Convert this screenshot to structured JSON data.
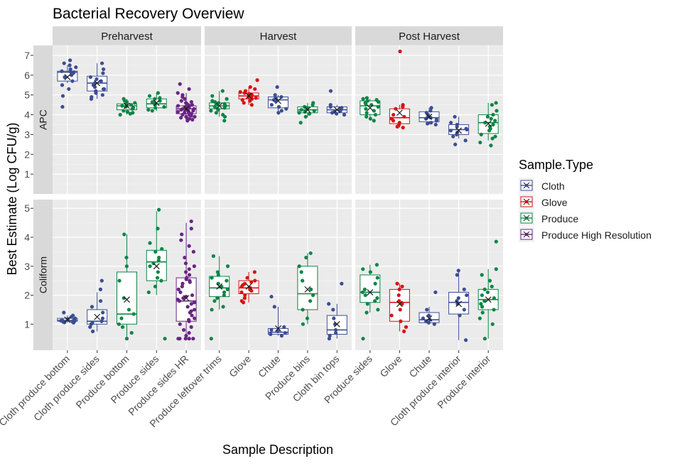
{
  "chart_data": {
    "type": "box",
    "title": "Bacterial Recovery Overview",
    "xlabel": "Sample Description",
    "ylabel": "Best Estimate (Log CFU/g)",
    "legend": {
      "title": "Sample.Type",
      "position": "right",
      "entries": [
        {
          "name": "Cloth",
          "color": "#3C4E93"
        },
        {
          "name": "Glove",
          "color": "#D61313"
        },
        {
          "name": "Produce",
          "color": "#0E8546"
        },
        {
          "name": "Produce High Resolution",
          "color": "#6A2483"
        }
      ]
    },
    "facet_cols": [
      "Preharvest",
      "Harvest",
      "Post Harvest"
    ],
    "facet_rows": [
      {
        "label": "APC",
        "ylim": [
          0,
          7.5
        ],
        "yticks": [
          1,
          2,
          3,
          4,
          5,
          6,
          7
        ]
      },
      {
        "label": "Coliform",
        "ylim": [
          0.1,
          5.3
        ],
        "yticks": [
          1,
          2,
          3,
          4,
          5
        ]
      }
    ],
    "categories": {
      "Preharvest": [
        "Cloth produce bottom",
        "Cloth produce sides",
        "Produce bottom",
        "Produce sides",
        "Produce sides HR"
      ],
      "Harvest": [
        "Produce leftover trims",
        "Glove",
        "Chute",
        "Produce bins",
        "Cloth bin tops"
      ],
      "Post Harvest": [
        "Produce sides",
        "Glove",
        "Chute",
        "Cloth produce interior",
        "Produce interior"
      ]
    },
    "grid": true,
    "boxes": [
      {
        "facet_col": "Preharvest",
        "facet_row": "APC",
        "category": "Cloth produce bottom",
        "type": "Cloth",
        "stats": {
          "min": 5.6,
          "q1": 5.7,
          "median": 6.15,
          "q3": 6.2,
          "max": 6.5,
          "mean": 5.9
        },
        "points": [
          6.75,
          6.6,
          6.5,
          6.4,
          6.3,
          6.2,
          6.2,
          6.15,
          6.15,
          6.1,
          6.0,
          5.9,
          5.7,
          5.5,
          5.3,
          4.95,
          4.4
        ]
      },
      {
        "facet_col": "Preharvest",
        "facet_row": "APC",
        "category": "Cloth produce sides",
        "type": "Cloth",
        "stats": {
          "min": 4.8,
          "q1": 5.2,
          "median": 5.6,
          "q3": 5.95,
          "max": 6.6,
          "mean": 5.6
        },
        "points": [
          6.6,
          6.3,
          6.1,
          5.9,
          5.8,
          5.7,
          5.6,
          5.5,
          5.4,
          5.3,
          5.3,
          5.2,
          5.1,
          5.0,
          4.9,
          4.8
        ]
      },
      {
        "facet_col": "Preharvest",
        "facet_row": "APC",
        "category": "Produce bottom",
        "type": "Produce",
        "stats": {
          "min": 4.0,
          "q1": 4.25,
          "median": 4.45,
          "q3": 4.55,
          "max": 4.8,
          "mean": 4.45
        },
        "points": [
          4.8,
          4.7,
          4.65,
          4.6,
          4.55,
          4.5,
          4.45,
          4.4,
          4.35,
          4.3,
          4.2,
          4.15,
          4.1,
          4.05,
          4.0
        ]
      },
      {
        "facet_col": "Preharvest",
        "facet_row": "APC",
        "category": "Produce sides",
        "type": "Produce",
        "stats": {
          "min": 4.2,
          "q1": 4.35,
          "median": 4.55,
          "q3": 4.8,
          "max": 5.1,
          "mean": 4.6
        },
        "points": [
          5.1,
          4.95,
          4.85,
          4.8,
          4.7,
          4.65,
          4.6,
          4.55,
          4.5,
          4.4,
          4.35,
          4.25,
          4.2
        ]
      },
      {
        "facet_col": "Preharvest",
        "facet_row": "APC",
        "category": "Produce sides HR",
        "type": "Produce High Resolution",
        "stats": {
          "min": 3.7,
          "q1": 4.05,
          "median": 4.3,
          "q3": 4.45,
          "max": 5.1,
          "mean": 4.3
        },
        "points": [
          5.55,
          5.3,
          5.1,
          5.0,
          4.9,
          4.8,
          4.7,
          4.65,
          4.6,
          4.55,
          4.5,
          4.5,
          4.45,
          4.45,
          4.4,
          4.4,
          4.35,
          4.35,
          4.3,
          4.3,
          4.3,
          4.25,
          4.25,
          4.2,
          4.2,
          4.15,
          4.15,
          4.1,
          4.1,
          4.05,
          4.0,
          4.0,
          3.95,
          3.9,
          3.9,
          3.85,
          3.8,
          3.8,
          3.75,
          3.7
        ]
      },
      {
        "facet_col": "Harvest",
        "facet_row": "APC",
        "category": "Produce leftover trims",
        "type": "Produce",
        "stats": {
          "min": 3.9,
          "q1": 4.3,
          "median": 4.45,
          "q3": 4.6,
          "max": 5.2,
          "mean": 4.45
        },
        "points": [
          5.2,
          4.95,
          4.8,
          4.7,
          4.65,
          4.6,
          4.55,
          4.5,
          4.45,
          4.4,
          4.35,
          4.3,
          4.25,
          4.2,
          4.1,
          4.0,
          3.9,
          3.7
        ]
      },
      {
        "facet_col": "Harvest",
        "facet_row": "APC",
        "category": "Glove",
        "type": "Glove",
        "stats": {
          "min": 4.5,
          "q1": 4.8,
          "median": 4.95,
          "q3": 5.1,
          "max": 5.4,
          "mean": 4.95
        },
        "points": [
          5.75,
          5.4,
          5.3,
          5.2,
          5.15,
          5.1,
          5.05,
          5.0,
          5.0,
          4.95,
          4.9,
          4.9,
          4.85,
          4.8,
          4.75,
          4.7,
          4.6,
          4.5
        ]
      },
      {
        "facet_col": "Harvest",
        "facet_row": "APC",
        "category": "Chute",
        "type": "Cloth",
        "stats": {
          "min": 4.1,
          "q1": 4.35,
          "median": 4.75,
          "q3": 4.9,
          "max": 5.0,
          "mean": 4.7
        },
        "points": [
          5.4,
          5.0,
          4.9,
          4.85,
          4.8,
          4.75,
          4.7,
          4.5,
          4.4,
          4.3,
          4.2,
          4.1
        ]
      },
      {
        "facet_col": "Harvest",
        "facet_row": "APC",
        "category": "Produce bins",
        "type": "Produce",
        "stats": {
          "min": 3.9,
          "q1": 4.1,
          "median": 4.25,
          "q3": 4.4,
          "max": 4.6,
          "mean": 4.25
        },
        "points": [
          4.6,
          4.5,
          4.4,
          4.35,
          4.3,
          4.25,
          4.2,
          4.15,
          4.1,
          4.05,
          3.9,
          3.6
        ]
      },
      {
        "facet_col": "Harvest",
        "facet_row": "APC",
        "category": "Cloth bin tops",
        "type": "Cloth",
        "stats": {
          "min": 4.0,
          "q1": 4.1,
          "median": 4.25,
          "q3": 4.4,
          "max": 4.5,
          "mean": 4.25
        },
        "points": [
          5.2,
          4.5,
          4.4,
          4.35,
          4.3,
          4.2,
          4.15,
          4.1,
          4.05,
          4.0
        ]
      },
      {
        "facet_col": "Post Harvest",
        "facet_row": "APC",
        "category": "Produce sides",
        "type": "Produce",
        "stats": {
          "min": 3.8,
          "q1": 4.0,
          "median": 4.45,
          "q3": 4.7,
          "max": 4.8,
          "mean": 4.35
        },
        "points": [
          4.85,
          4.8,
          4.75,
          4.7,
          4.65,
          4.6,
          4.55,
          4.5,
          4.4,
          4.3,
          4.2,
          4.1,
          4.0,
          3.9,
          3.8,
          3.7
        ]
      },
      {
        "facet_col": "Post Harvest",
        "facet_row": "APC",
        "category": "Glove",
        "type": "Glove",
        "stats": {
          "min": 3.35,
          "q1": 3.55,
          "median": 3.85,
          "q3": 4.3,
          "max": 4.5,
          "mean": 4.1
        },
        "points": [
          7.2,
          4.5,
          4.4,
          4.3,
          4.0,
          3.9,
          3.8,
          3.7,
          3.6,
          3.5,
          3.4,
          3.35
        ]
      },
      {
        "facet_col": "Post Harvest",
        "facet_row": "APC",
        "category": "Chute",
        "type": "Cloth",
        "stats": {
          "min": 3.5,
          "q1": 3.65,
          "median": 3.85,
          "q3": 4.15,
          "max": 4.35,
          "mean": 3.9
        },
        "points": [
          4.35,
          4.2,
          4.1,
          4.0,
          3.9,
          3.85,
          3.8,
          3.75,
          3.7,
          3.6,
          3.55,
          3.5
        ]
      },
      {
        "facet_col": "Post Harvest",
        "facet_row": "APC",
        "category": "Cloth produce interior",
        "type": "Cloth",
        "stats": {
          "min": 2.8,
          "q1": 3.0,
          "median": 3.25,
          "q3": 3.5,
          "max": 3.9,
          "mean": 3.2
        },
        "points": [
          3.9,
          3.6,
          3.5,
          3.4,
          3.3,
          3.25,
          3.2,
          3.1,
          3.0,
          2.9,
          2.7,
          2.5
        ]
      },
      {
        "facet_col": "Post Harvest",
        "facet_row": "APC",
        "category": "Produce interior",
        "type": "Produce",
        "stats": {
          "min": 2.7,
          "q1": 3.05,
          "median": 3.6,
          "q3": 4.0,
          "max": 4.6,
          "mean": 3.55
        },
        "points": [
          4.6,
          4.5,
          4.2,
          4.0,
          3.9,
          3.8,
          3.7,
          3.6,
          3.5,
          3.4,
          3.3,
          3.2,
          3.0,
          2.9,
          2.8,
          2.6,
          2.45
        ]
      },
      {
        "facet_col": "Preharvest",
        "facet_row": "Coliform",
        "category": "Cloth produce bottom",
        "type": "Cloth",
        "stats": {
          "min": 1.05,
          "q1": 1.1,
          "median": 1.13,
          "q3": 1.2,
          "max": 1.3,
          "mean": 1.15
        },
        "points": [
          1.4,
          1.3,
          1.25,
          1.2,
          1.18,
          1.15,
          1.13,
          1.12,
          1.1,
          1.1,
          1.08,
          1.07,
          1.06,
          1.05
        ]
      },
      {
        "facet_col": "Preharvest",
        "facet_row": "Coliform",
        "category": "Cloth produce sides",
        "type": "Cloth",
        "stats": {
          "min": 0.75,
          "q1": 1.0,
          "median": 1.1,
          "q3": 1.5,
          "max": 2.1,
          "mean": 1.25
        },
        "points": [
          2.5,
          2.2,
          1.8,
          1.6,
          1.4,
          1.2,
          1.1,
          1.05,
          1.0,
          0.9,
          0.75
        ]
      },
      {
        "facet_col": "Preharvest",
        "facet_row": "Coliform",
        "category": "Produce bottom",
        "type": "Produce",
        "stats": {
          "min": 0.5,
          "q1": 1.0,
          "median": 1.35,
          "q3": 2.8,
          "max": 4.1,
          "mean": 1.85
        },
        "points": [
          4.1,
          3.3,
          3.0,
          2.5,
          1.9,
          1.5,
          1.35,
          1.2,
          1.0,
          0.9,
          0.7,
          0.5
        ]
      },
      {
        "facet_col": "Preharvest",
        "facet_row": "Coliform",
        "category": "Produce sides",
        "type": "Produce",
        "stats": {
          "min": 2.0,
          "q1": 2.5,
          "median": 3.15,
          "q3": 3.55,
          "max": 4.9,
          "mean": 3.0
        },
        "points": [
          4.95,
          4.3,
          3.8,
          3.6,
          3.5,
          3.3,
          3.2,
          3.1,
          3.0,
          2.8,
          2.6,
          2.5,
          2.3,
          2.1,
          0.5
        ]
      },
      {
        "facet_col": "Preharvest",
        "facet_row": "Coliform",
        "category": "Produce sides HR",
        "type": "Produce High Resolution",
        "stats": {
          "min": 0.5,
          "q1": 1.1,
          "median": 1.8,
          "q3": 2.6,
          "max": 4.5,
          "mean": 1.9
        },
        "points": [
          4.55,
          4.3,
          4.1,
          3.9,
          3.7,
          3.5,
          3.3,
          3.1,
          3.0,
          2.9,
          2.8,
          2.7,
          2.6,
          2.55,
          2.5,
          2.45,
          2.4,
          2.3,
          2.2,
          2.1,
          2.0,
          1.95,
          1.9,
          1.85,
          1.8,
          1.75,
          1.7,
          1.6,
          1.5,
          1.45,
          1.4,
          1.3,
          1.2,
          1.15,
          1.1,
          1.0,
          0.9,
          0.8,
          0.7,
          0.6,
          0.5,
          0.5,
          0.5,
          0.5,
          0.5
        ]
      },
      {
        "facet_col": "Harvest",
        "facet_row": "Coliform",
        "category": "Produce leftover trims",
        "type": "Produce",
        "stats": {
          "min": 1.5,
          "q1": 1.95,
          "median": 2.25,
          "q3": 2.65,
          "max": 3.35,
          "mean": 2.3
        },
        "points": [
          3.35,
          3.0,
          2.8,
          2.7,
          2.6,
          2.5,
          2.4,
          2.3,
          2.2,
          2.1,
          2.0,
          1.9,
          1.8,
          1.6,
          1.5,
          0.5
        ]
      },
      {
        "facet_col": "Harvest",
        "facet_row": "Coliform",
        "category": "Glove",
        "type": "Glove",
        "stats": {
          "min": 1.75,
          "q1": 2.05,
          "median": 2.25,
          "q3": 2.5,
          "max": 2.8,
          "mean": 2.3
        },
        "points": [
          2.8,
          2.6,
          2.5,
          2.45,
          2.4,
          2.35,
          2.3,
          2.25,
          2.2,
          2.15,
          2.1,
          2.0,
          1.9,
          1.8,
          1.75
        ]
      },
      {
        "facet_col": "Harvest",
        "facet_row": "Coliform",
        "category": "Chute",
        "type": "Cloth",
        "stats": {
          "min": 0.6,
          "q1": 0.65,
          "median": 0.72,
          "q3": 0.85,
          "max": 1.6,
          "mean": 0.85
        },
        "points": [
          1.95,
          1.6,
          0.9,
          0.8,
          0.75,
          0.7,
          0.65,
          0.6
        ]
      },
      {
        "facet_col": "Harvest",
        "facet_row": "Coliform",
        "category": "Produce bins",
        "type": "Produce",
        "stats": {
          "min": 1.0,
          "q1": 1.5,
          "median": 2.05,
          "q3": 3.0,
          "max": 3.45,
          "mean": 2.2
        },
        "points": [
          3.45,
          3.3,
          3.0,
          2.8,
          2.5,
          2.2,
          2.0,
          1.8,
          1.5,
          1.2,
          1.0
        ]
      },
      {
        "facet_col": "Harvest",
        "facet_row": "Coliform",
        "category": "Cloth bin tops",
        "type": "Cloth",
        "stats": {
          "min": 0.5,
          "q1": 0.65,
          "median": 0.8,
          "q3": 1.3,
          "max": 1.7,
          "mean": 1.0
        },
        "points": [
          2.4,
          1.7,
          1.5,
          1.2,
          1.0,
          0.8,
          0.7,
          0.6,
          0.5
        ]
      },
      {
        "facet_col": "Post Harvest",
        "facet_row": "Coliform",
        "category": "Produce sides",
        "type": "Produce",
        "stats": {
          "min": 1.4,
          "q1": 1.75,
          "median": 2.1,
          "q3": 2.7,
          "max": 3.05,
          "mean": 2.1
        },
        "points": [
          3.05,
          2.9,
          2.8,
          2.6,
          2.4,
          2.2,
          2.1,
          2.0,
          1.9,
          1.8,
          1.7,
          1.5,
          1.4,
          0.5
        ]
      },
      {
        "facet_col": "Post Harvest",
        "facet_row": "Coliform",
        "category": "Glove",
        "type": "Glove",
        "stats": {
          "min": 0.75,
          "q1": 1.1,
          "median": 1.75,
          "q3": 2.2,
          "max": 2.4,
          "mean": 1.7
        },
        "points": [
          2.4,
          2.3,
          2.2,
          2.0,
          1.8,
          1.7,
          1.5,
          1.3,
          1.1,
          0.9,
          0.75
        ]
      },
      {
        "facet_col": "Post Harvest",
        "facet_row": "Coliform",
        "category": "Chute",
        "type": "Cloth",
        "stats": {
          "min": 1.0,
          "q1": 1.05,
          "median": 1.15,
          "q3": 1.4,
          "max": 1.6,
          "mean": 1.2
        },
        "points": [
          2.1,
          1.5,
          1.3,
          1.2,
          1.15,
          1.1,
          1.05,
          1.0
        ]
      },
      {
        "facet_col": "Post Harvest",
        "facet_row": "Coliform",
        "category": "Cloth produce interior",
        "type": "Cloth",
        "stats": {
          "min": 0.45,
          "q1": 1.35,
          "median": 1.75,
          "q3": 2.1,
          "max": 2.8,
          "mean": 1.7
        },
        "points": [
          2.85,
          2.7,
          2.2,
          2.0,
          1.9,
          1.8,
          1.7,
          1.5,
          1.3,
          0.45
        ]
      },
      {
        "facet_col": "Post Harvest",
        "facet_row": "Coliform",
        "category": "Produce interior",
        "type": "Produce",
        "stats": {
          "min": 0.5,
          "q1": 1.5,
          "median": 1.85,
          "q3": 2.2,
          "max": 2.9,
          "mean": 1.85
        },
        "points": [
          3.85,
          2.9,
          2.7,
          2.5,
          2.3,
          2.2,
          2.1,
          2.0,
          1.9,
          1.8,
          1.7,
          1.6,
          1.5,
          1.4,
          1.2,
          1.0,
          0.5
        ]
      }
    ]
  }
}
